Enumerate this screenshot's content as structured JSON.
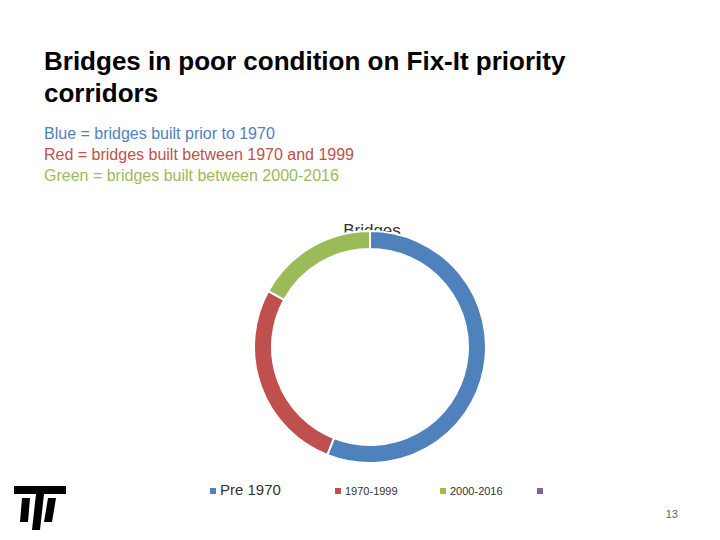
{
  "chart_data": {
    "type": "donut",
    "title": "Bridges in poor condition on Fix-It priority corridors",
    "subtitle": [
      "Blue = bridges built prior to 1970",
      "Red = bridges built between 1970 and 1999",
      "Green = bridges built between 2000-2016"
    ],
    "chart_title": "Bridges",
    "categories": [
      "Pre 1970",
      "1970-1999",
      "2000-2016",
      null
    ],
    "values": [
      56,
      27,
      17,
      0
    ],
    "colors": [
      "#4f81bd",
      "#c0504d",
      "#9bbb59",
      "#8064a2"
    ],
    "legend": "bottom",
    "page_number": 13
  }
}
